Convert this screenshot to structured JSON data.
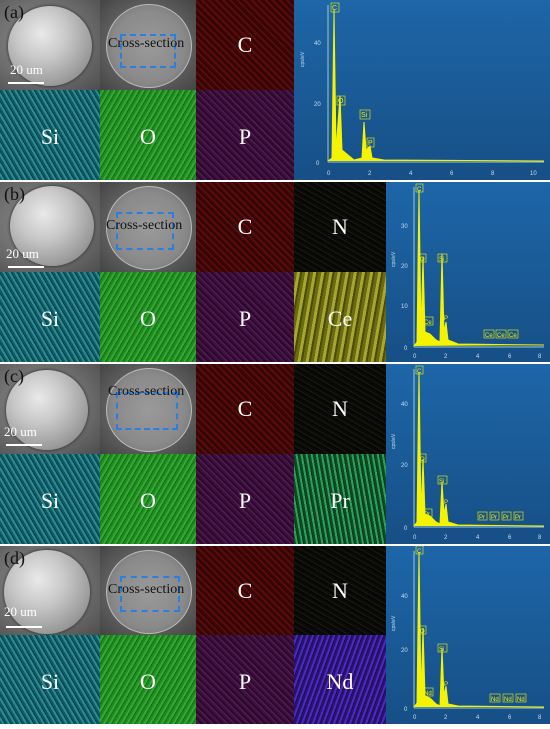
{
  "panels": [
    {
      "id": "a",
      "label": "(a)",
      "cross_label": "Cross-section",
      "scale": "20 um",
      "maps": [
        "C",
        "Si",
        "O",
        "P"
      ],
      "spec_peaks": [
        "C",
        "O",
        "Si",
        "P"
      ],
      "yticks": [
        "0",
        "20",
        "40"
      ],
      "xticks": [
        "0",
        "2",
        "4",
        "6",
        "8",
        "10"
      ],
      "ylabel": "cps/eV"
    },
    {
      "id": "b",
      "label": "(b)",
      "cross_label": "Cross-section",
      "scale": "20 um",
      "maps": [
        "C",
        "N",
        "Si",
        "O",
        "P",
        "Ce"
      ],
      "spec_peaks": [
        "C",
        "O",
        "Si",
        "N",
        "Ce",
        "P",
        "Ce",
        "Ce",
        "Ce"
      ],
      "yticks": [
        "0",
        "10",
        "20",
        "30"
      ],
      "xticks": [
        "0",
        "2",
        "4",
        "6",
        "8"
      ],
      "ylabel": "cps/eV"
    },
    {
      "id": "c",
      "label": "(c)",
      "cross_label": "Cross-section",
      "scale": "20 um",
      "maps": [
        "C",
        "N",
        "Si",
        "O",
        "P",
        "Pr"
      ],
      "spec_peaks": [
        "C",
        "O",
        "Si",
        "N",
        "Pr",
        "P",
        "Pr",
        "Pr",
        "Pr",
        "Pr"
      ],
      "yticks": [
        "0",
        "20",
        "40"
      ],
      "xticks": [
        "0",
        "2",
        "4",
        "6",
        "8"
      ],
      "ylabel": "cps/eV"
    },
    {
      "id": "d",
      "label": "(d)",
      "cross_label": "Cross-section",
      "scale": "20 um",
      "maps": [
        "C",
        "N",
        "Si",
        "O",
        "P",
        "Nd"
      ],
      "spec_peaks": [
        "C",
        "O",
        "Si",
        "N",
        "Nd",
        "P",
        "Nd",
        "Nd",
        "Nd"
      ],
      "yticks": [
        "0",
        "20",
        "40"
      ],
      "xticks": [
        "0",
        "2",
        "4",
        "6",
        "8"
      ],
      "ylabel": "cps/eV"
    }
  ]
}
